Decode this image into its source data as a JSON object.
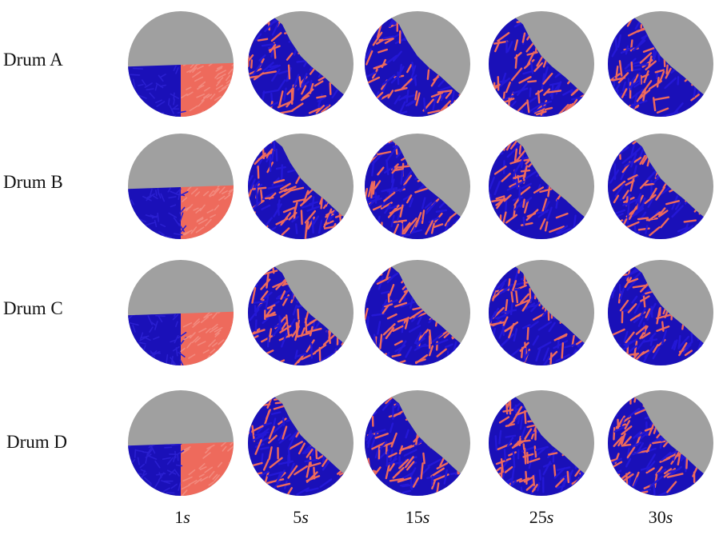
{
  "rows": [
    {
      "label": "Drum A",
      "color_left": "#1a10b8",
      "color_right": "#ee6a5c"
    },
    {
      "label": "Drum B",
      "color_left": "#1a10b8",
      "color_right": "#ee6a5c"
    },
    {
      "label": "Drum C",
      "color_left": "#1a10b8",
      "color_right": "#ee6a5c"
    },
    {
      "label": "Drum D",
      "color_left": "#1a10b8",
      "color_right": "#ee6a5c"
    }
  ],
  "columns": [
    {
      "value": "1",
      "unit": "s"
    },
    {
      "value": "5",
      "unit": "s"
    },
    {
      "value": "15",
      "unit": "s"
    },
    {
      "value": "25",
      "unit": "s"
    },
    {
      "value": "30",
      "unit": "s"
    }
  ],
  "colors": {
    "drum_background": "#a0a0a0",
    "particle_blue": "#1a10b8",
    "particle_red": "#ee6a5c",
    "particle_red_light": "#f28a7e"
  }
}
